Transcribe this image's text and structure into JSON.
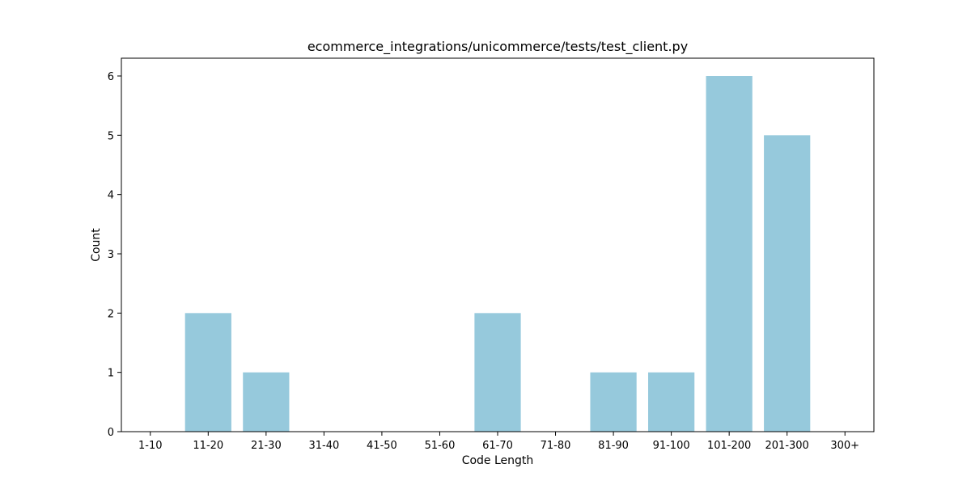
{
  "colors": {
    "bar": "#96c9dc",
    "axis": "#000000",
    "background": "#ffffff"
  },
  "chart_data": {
    "type": "bar",
    "title": "ecommerce_integrations/unicommerce/tests/test_client.py",
    "xlabel": "Code Length",
    "ylabel": "Count",
    "categories": [
      "1-10",
      "11-20",
      "21-30",
      "31-40",
      "41-50",
      "51-60",
      "61-70",
      "71-80",
      "81-90",
      "91-100",
      "101-200",
      "201-300",
      "300+"
    ],
    "values": [
      0,
      2,
      1,
      0,
      0,
      0,
      2,
      0,
      1,
      1,
      6,
      5,
      0
    ],
    "yticks": [
      "0",
      "1",
      "2",
      "3",
      "4",
      "5",
      "6"
    ],
    "ylim": [
      0,
      6.3
    ],
    "grid": false,
    "legend": "none"
  }
}
